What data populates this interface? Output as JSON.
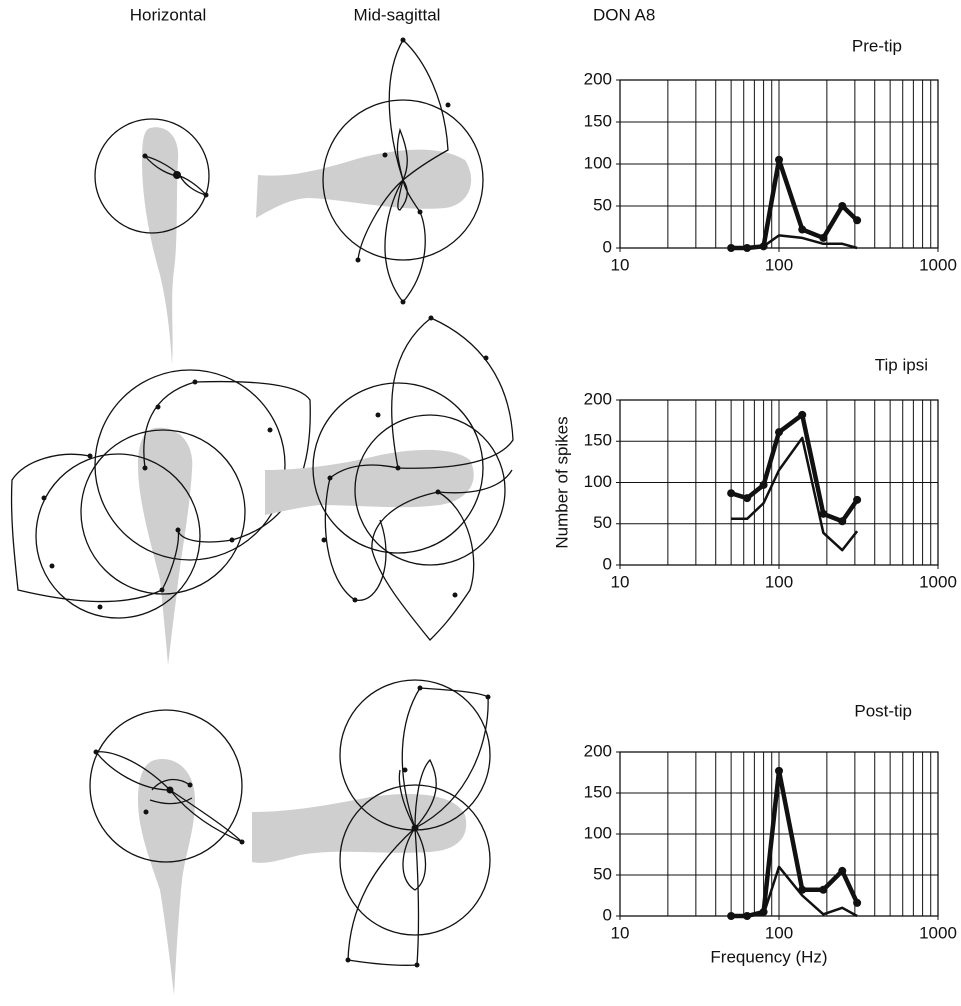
{
  "labels": {
    "horizontal": "Horizontal",
    "mid_sagittal": "Mid-sagittal",
    "unit": "DON A8"
  },
  "chart_data": [
    {
      "type": "line",
      "title": "Pre-tip",
      "x": [
        50,
        63,
        80,
        100,
        140,
        190,
        250,
        310
      ],
      "series": [
        {
          "color": "#111111",
          "line_width": 4.5,
          "markers": true,
          "values": [
            0,
            0,
            2,
            105,
            22,
            12,
            50,
            33
          ]
        },
        {
          "color": "#111111",
          "line_width": 2.5,
          "markers": false,
          "values": [
            0,
            0,
            2,
            15,
            12,
            5,
            5,
            0
          ]
        }
      ],
      "xlim": [
        10,
        1000
      ],
      "xticks": [
        10,
        100,
        1000
      ],
      "xgrid": [
        10,
        20,
        30,
        40,
        50,
        60,
        70,
        80,
        90,
        100,
        200,
        300,
        400,
        500,
        600,
        700,
        800,
        900,
        1000
      ],
      "ylim": [
        0,
        200
      ],
      "yticks": [
        0,
        50,
        100,
        150,
        200
      ],
      "log_x": true,
      "grid": true
    },
    {
      "type": "line",
      "title": "Tip ipsi",
      "ylabel": "Number of spikes",
      "x": [
        50,
        63,
        80,
        100,
        140,
        190,
        250,
        310
      ],
      "series": [
        {
          "color": "#111111",
          "line_width": 4.5,
          "markers": true,
          "values": [
            87,
            81,
            97,
            161,
            182,
            62,
            53,
            79
          ]
        },
        {
          "color": "#111111",
          "line_width": 2.5,
          "markers": false,
          "values": [
            56,
            56,
            75,
            115,
            154,
            39,
            18,
            41
          ]
        }
      ],
      "xlim": [
        10,
        1000
      ],
      "xticks": [
        10,
        100,
        1000
      ],
      "xgrid": [
        10,
        20,
        30,
        40,
        50,
        60,
        70,
        80,
        90,
        100,
        200,
        300,
        400,
        500,
        600,
        700,
        800,
        900,
        1000
      ],
      "ylim": [
        0,
        200
      ],
      "yticks": [
        0,
        50,
        100,
        150,
        200
      ],
      "log_x": true,
      "grid": true
    },
    {
      "type": "line",
      "title": "Post-tip",
      "xlabel": "Frequency (Hz)",
      "x": [
        50,
        63,
        80,
        100,
        140,
        190,
        250,
        310
      ],
      "series": [
        {
          "color": "#111111",
          "line_width": 4.5,
          "markers": true,
          "values": [
            0,
            0,
            5,
            177,
            32,
            32,
            55,
            16
          ]
        },
        {
          "color": "#111111",
          "line_width": 2.5,
          "markers": false,
          "values": [
            0,
            0,
            2,
            60,
            25,
            2,
            10,
            0
          ]
        }
      ],
      "xlim": [
        10,
        1000
      ],
      "xticks": [
        10,
        100,
        1000
      ],
      "xgrid": [
        10,
        20,
        30,
        40,
        50,
        60,
        70,
        80,
        90,
        100,
        200,
        300,
        400,
        500,
        600,
        700,
        800,
        900,
        1000
      ],
      "ylim": [
        0,
        200
      ],
      "yticks": [
        0,
        50,
        100,
        150,
        200
      ],
      "log_x": true,
      "grid": true
    }
  ]
}
